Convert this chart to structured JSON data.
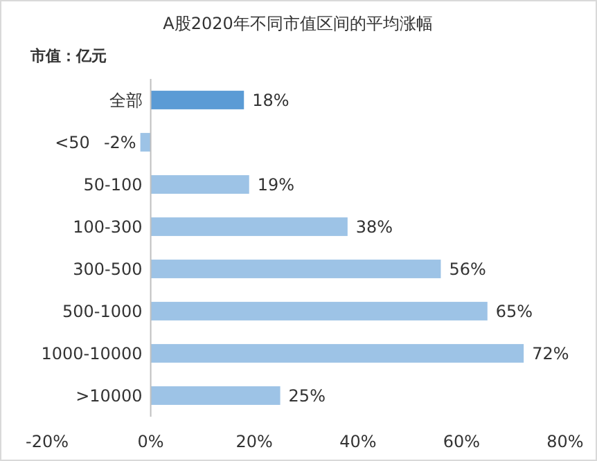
{
  "chart_data": {
    "type": "bar",
    "orientation": "horizontal",
    "title": "A股2020年不同市值区间的平均涨幅",
    "annotations": [
      "市值：亿元"
    ],
    "categories": [
      "全部",
      "<50",
      "50-100",
      "100-300",
      "300-500",
      "500-1000",
      "1000-10000",
      ">10000"
    ],
    "values": [
      18,
      -2,
      19,
      38,
      56,
      65,
      72,
      25
    ],
    "colors": [
      "#5b9bd5",
      "#9dc3e6",
      "#9dc3e6",
      "#9dc3e6",
      "#9dc3e6",
      "#9dc3e6",
      "#9dc3e6",
      "#9dc3e6"
    ],
    "value_labels": [
      "18%",
      "-2%",
      "19%",
      "38%",
      "56%",
      "65%",
      "72%",
      "25%"
    ],
    "xlim": [
      -20,
      80
    ],
    "xticks": [
      {
        "value": -20,
        "label": "-20%"
      },
      {
        "value": 0,
        "label": "0%"
      },
      {
        "value": 20,
        "label": "20%"
      },
      {
        "value": 40,
        "label": "40%"
      },
      {
        "value": 60,
        "label": "60%"
      },
      {
        "value": 80,
        "label": "80%"
      }
    ],
    "grid": false
  }
}
